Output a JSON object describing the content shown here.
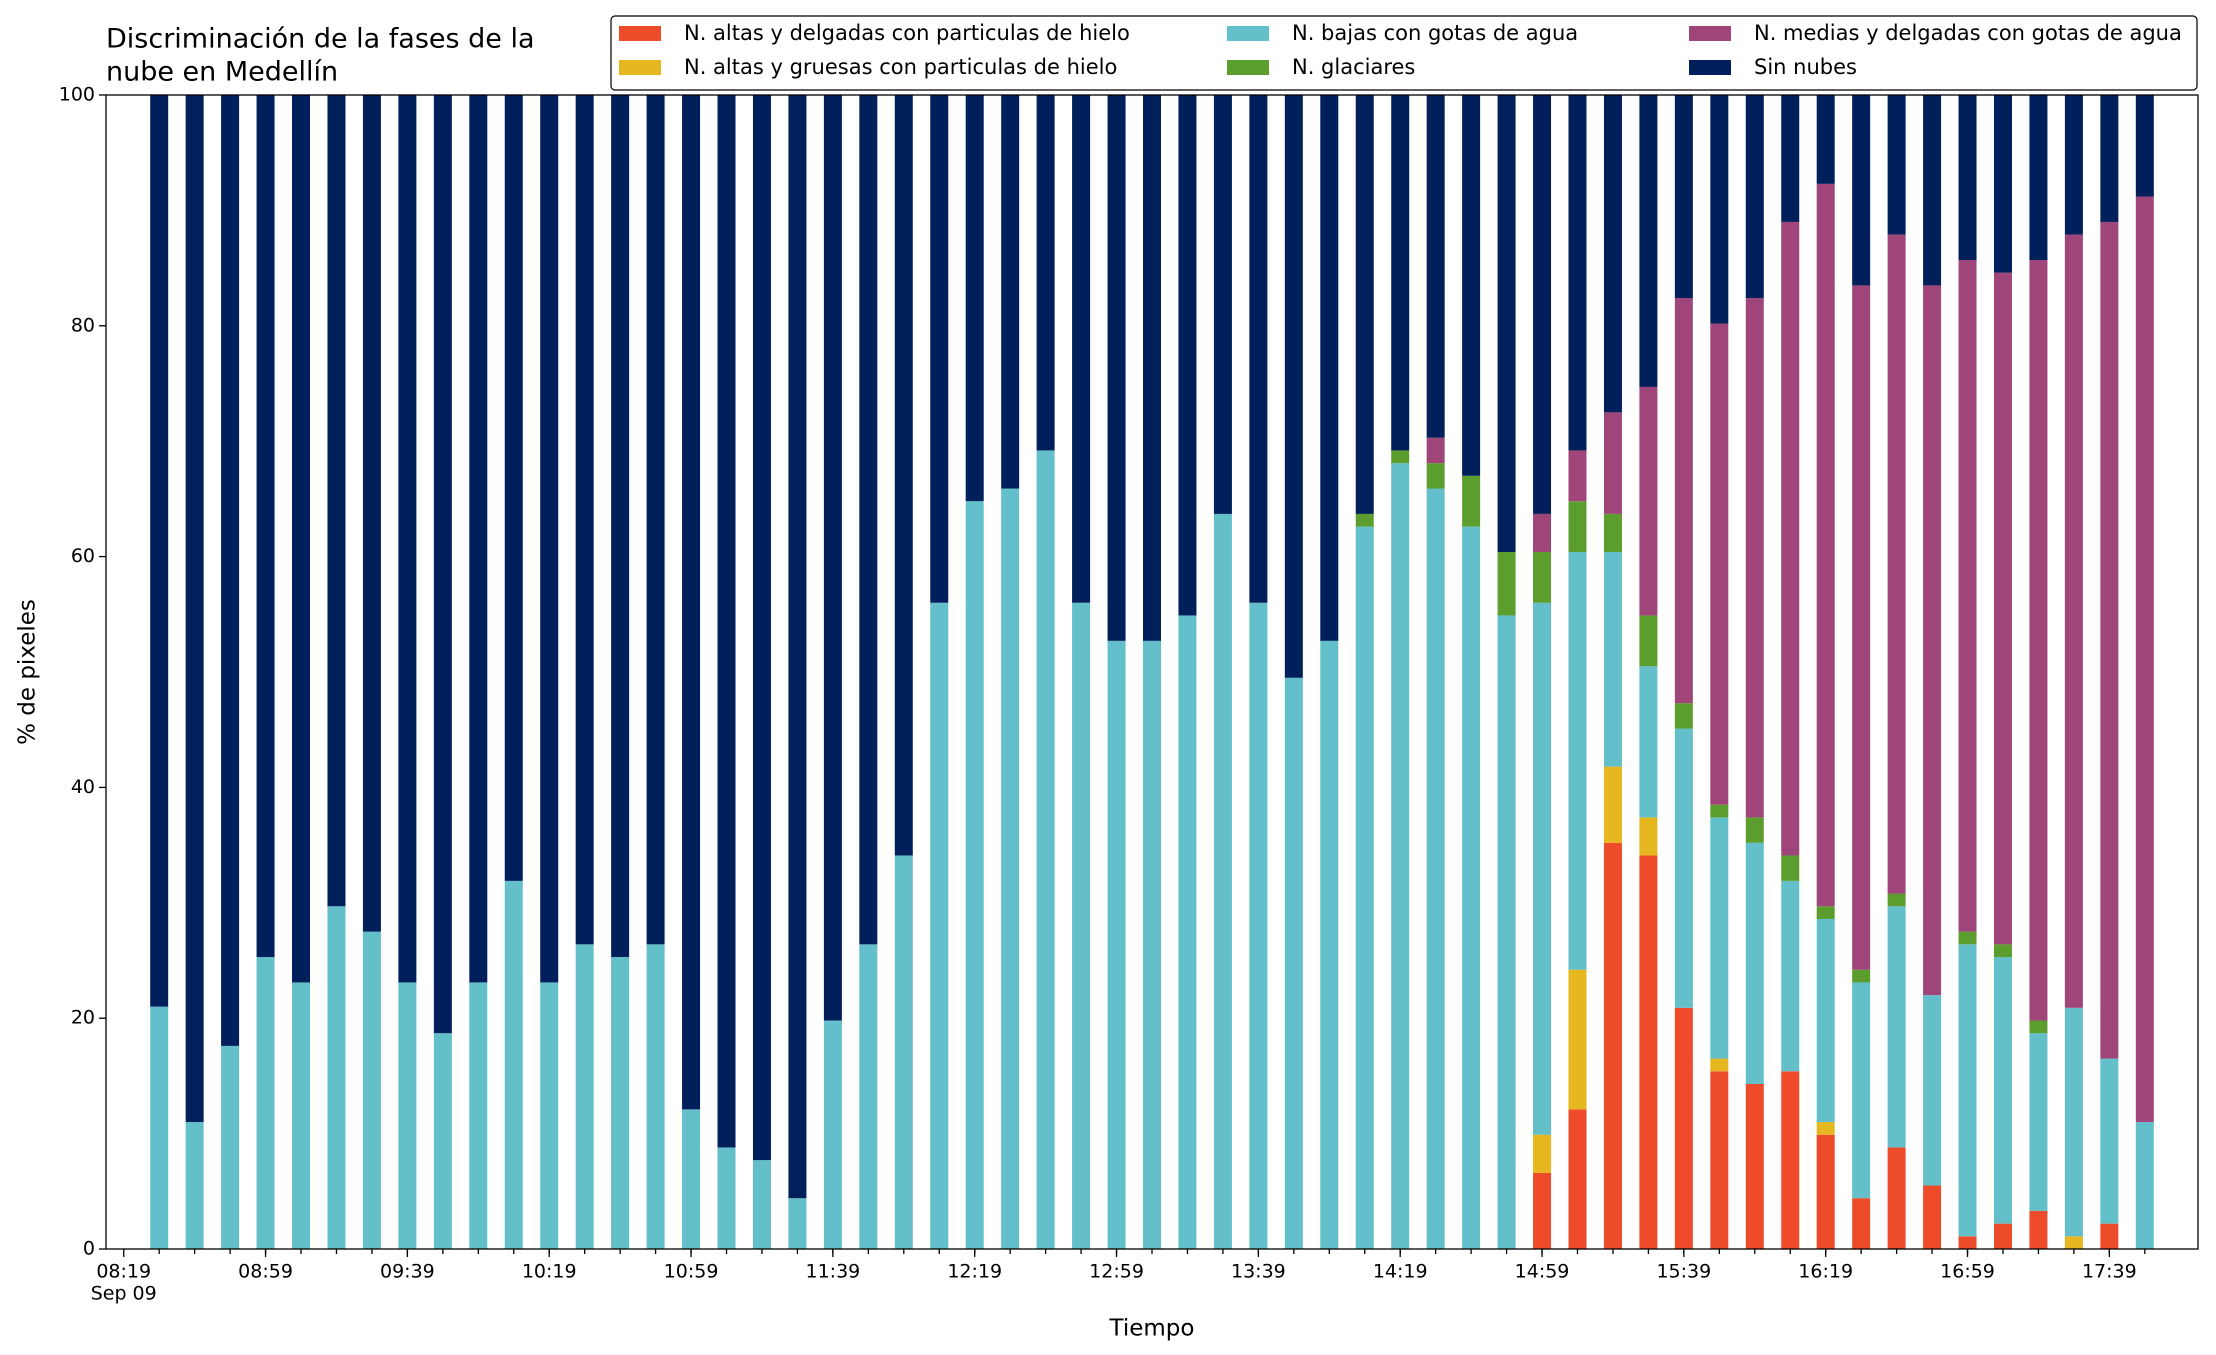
{
  "chart_data": {
    "type": "stacked_bar",
    "title": [
      "Discriminación de la fases de la",
      "nube en Medellín"
    ],
    "xlabel": "Tiempo",
    "ylabel": "% de pixeles",
    "x": [
      "08:29",
      "08:39",
      "08:49",
      "08:59",
      "09:09",
      "09:19",
      "09:29",
      "09:39",
      "09:49",
      "09:59",
      "10:09",
      "10:19",
      "10:29",
      "10:39",
      "10:49",
      "10:59",
      "11:09",
      "11:19",
      "11:29",
      "11:39",
      "11:49",
      "11:59",
      "12:09",
      "12:19",
      "12:29",
      "12:39",
      "12:49",
      "12:59",
      "13:09",
      "13:19",
      "13:29",
      "13:39",
      "13:49",
      "13:59",
      "14:09",
      "14:19",
      "14:29",
      "14:39",
      "14:49",
      "14:59",
      "15:09",
      "15:19",
      "15:29",
      "15:39",
      "15:49",
      "15:59",
      "16:09",
      "16:19",
      "16:29",
      "16:39",
      "16:49",
      "16:59",
      "17:09",
      "17:19",
      "17:29",
      "17:39",
      "17:49"
    ],
    "xlim": [
      "08:14",
      "18:04"
    ],
    "xticks": [
      "08:19",
      "08:59",
      "09:39",
      "10:19",
      "10:59",
      "11:39",
      "12:19",
      "12:59",
      "13:39",
      "14:19",
      "14:59",
      "15:39",
      "16:19",
      "16:59",
      "17:39"
    ],
    "xtick_date": "Sep 09",
    "ylim": [
      0,
      100
    ],
    "yticks": [
      0,
      20,
      40,
      60,
      80,
      100
    ],
    "legend": "upper right",
    "series": [
      {
        "name": "N. altas y delgadas con particulas de hielo",
        "color": "#ee4b2b",
        "values": [
          0,
          0,
          0,
          0,
          0,
          0,
          0,
          0,
          0,
          0,
          0,
          0,
          0,
          0,
          0,
          0,
          0,
          0,
          0,
          0,
          0,
          0,
          0,
          0,
          0,
          0,
          0,
          0,
          0,
          0,
          0,
          0,
          0,
          0,
          0,
          0,
          0,
          0,
          0,
          6.6,
          12.1,
          35.2,
          34.1,
          20.9,
          15.4,
          14.3,
          15.4,
          9.9,
          4.4,
          8.8,
          5.5,
          1.1,
          2.2,
          3.3,
          0,
          2.2,
          0
        ]
      },
      {
        "name": "N. altas y gruesas con particulas de hielo",
        "color": "#e6b71e",
        "values": [
          0,
          0,
          0,
          0,
          0,
          0,
          0,
          0,
          0,
          0,
          0,
          0,
          0,
          0,
          0,
          0,
          0,
          0,
          0,
          0,
          0,
          0,
          0,
          0,
          0,
          0,
          0,
          0,
          0,
          0,
          0,
          0,
          0,
          0,
          0,
          0,
          0,
          0,
          0,
          3.3,
          12.1,
          6.6,
          3.3,
          0,
          1.1,
          0,
          0,
          1.1,
          0,
          0,
          0,
          0,
          0,
          0,
          1.1,
          0,
          0
        ]
      },
      {
        "name": "N. bajas con gotas de agua",
        "color": "#63bfc9",
        "values": [
          21,
          11,
          17.6,
          25.3,
          23.1,
          29.7,
          27.5,
          23.1,
          18.7,
          23.1,
          31.9,
          23.1,
          26.4,
          25.3,
          26.4,
          12.1,
          8.8,
          7.7,
          4.4,
          19.8,
          26.4,
          34.1,
          56,
          64.8,
          65.9,
          69.2,
          56,
          52.7,
          52.7,
          54.9,
          63.7,
          56,
          49.5,
          52.7,
          62.6,
          68.1,
          65.9,
          62.6,
          54.9,
          46.1,
          36.2,
          18.6,
          13.1,
          24.2,
          20.9,
          20.9,
          16.5,
          17.6,
          18.7,
          20.9,
          16.5,
          25.3,
          23.1,
          15.4,
          19.8,
          14.3,
          11
        ]
      },
      {
        "name": "N. glaciares",
        "color": "#5c9e2e",
        "values": [
          0,
          0,
          0,
          0,
          0,
          0,
          0,
          0,
          0,
          0,
          0,
          0,
          0,
          0,
          0,
          0,
          0,
          0,
          0,
          0,
          0,
          0,
          0,
          0,
          0,
          0,
          0,
          0,
          0,
          0,
          0,
          0,
          0,
          0,
          1.1,
          1.1,
          2.2,
          4.4,
          5.5,
          4.4,
          4.4,
          3.3,
          4.4,
          2.2,
          1.1,
          2.2,
          2.2,
          1.1,
          1.1,
          1.1,
          0,
          1.1,
          1.1,
          1.1,
          0,
          0,
          0
        ]
      },
      {
        "name": "N. medias y delgadas con gotas de agua",
        "color": "#a0457a",
        "values": [
          0,
          0,
          0,
          0,
          0,
          0,
          0,
          0,
          0,
          0,
          0,
          0,
          0,
          0,
          0,
          0,
          0,
          0,
          0,
          0,
          0,
          0,
          0,
          0,
          0,
          0,
          0,
          0,
          0,
          0,
          0,
          0,
          0,
          0,
          0,
          0,
          2.2,
          0,
          0,
          3.3,
          4.4,
          8.8,
          19.8,
          35.1,
          41.7,
          45,
          54.9,
          62.6,
          59.3,
          57.1,
          61.5,
          58.2,
          58.2,
          65.9,
          67,
          72.5,
          80.2
        ]
      },
      {
        "name": "Sin nubes",
        "color": "#011f5b",
        "values": [
          79,
          89,
          82.4,
          74.7,
          76.9,
          70.3,
          72.5,
          76.9,
          81.3,
          76.9,
          68.1,
          76.9,
          73.6,
          74.7,
          73.6,
          87.9,
          91.2,
          92.3,
          95.6,
          80.2,
          73.6,
          65.9,
          44,
          35.2,
          34.1,
          30.8,
          44,
          47.3,
          47.3,
          45.1,
          36.3,
          44,
          50.5,
          47.3,
          36.3,
          30.8,
          29.7,
          33,
          39.6,
          36.3,
          30.8,
          27.5,
          25.3,
          17.6,
          19.8,
          17.6,
          11,
          7.7,
          16.5,
          12.1,
          16.5,
          14.3,
          15.4,
          14.3,
          12.1,
          11,
          8.8
        ]
      }
    ]
  }
}
